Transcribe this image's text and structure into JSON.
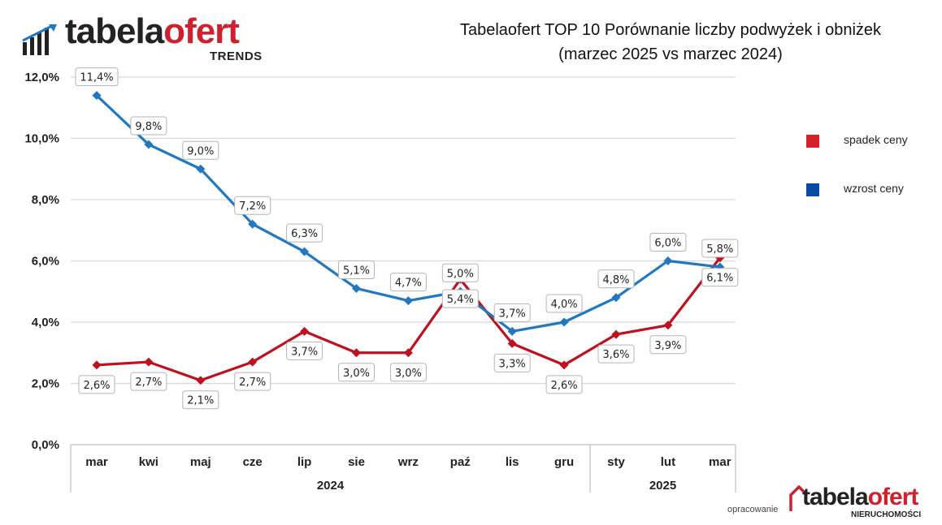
{
  "brand": {
    "logo_main": "tabela",
    "logo_accent": "ofert",
    "logo_sub": "TRENDS"
  },
  "credit": {
    "prefix": "opracowanie",
    "logo_main": "tabela",
    "logo_accent": "ofert",
    "logo_sub": "NIERUCHOMOŚCI"
  },
  "chart_data": {
    "type": "line",
    "title_line1": "Tabelaofert TOP 10 Porównanie liczby podwyżek i obniżek",
    "title_line2": "(marzec 2025 vs marzec 2024)",
    "categories": [
      "mar",
      "kwi",
      "maj",
      "cze",
      "lip",
      "sie",
      "wrz",
      "paź",
      "lis",
      "gru",
      "sty",
      "lut",
      "mar"
    ],
    "year_groups": [
      {
        "label": "2024",
        "count": 10
      },
      {
        "label": "2025",
        "count": 3
      }
    ],
    "yticks": [
      "0,0%",
      "2,0%",
      "4,0%",
      "6,0%",
      "8,0%",
      "10,0%",
      "12,0%"
    ],
    "ylim": [
      0,
      12
    ],
    "grid": true,
    "legend_position": "right",
    "series": [
      {
        "name": "spadek ceny",
        "color": "#c0101e",
        "legend_color": "#d3202a",
        "values": [
          2.6,
          2.7,
          2.1,
          2.7,
          3.7,
          3.0,
          3.0,
          5.4,
          3.3,
          2.6,
          3.6,
          3.9,
          6.1
        ],
        "labels": [
          "2,6%",
          "2,7%",
          "2,1%",
          "2,7%",
          "3,7%",
          "3,0%",
          "3,0%",
          "5,4%",
          "3,3%",
          "2,6%",
          "3,6%",
          "3,9%",
          "6,1%"
        ],
        "label_pos": [
          "below",
          "below",
          "below",
          "below",
          "below",
          "below",
          "below",
          "below",
          "below",
          "below",
          "below",
          "below",
          "below"
        ]
      },
      {
        "name": "wzrost ceny",
        "color": "#1f78c1",
        "legend_color": "#0b4aa2",
        "values": [
          11.4,
          9.8,
          9.0,
          7.2,
          6.3,
          5.1,
          4.7,
          5.0,
          3.7,
          4.0,
          4.8,
          6.0,
          5.8
        ],
        "labels": [
          "11,4%",
          "9,8%",
          "9,0%",
          "7,2%",
          "6,3%",
          "5,1%",
          "4,7%",
          "5,0%",
          "3,7%",
          "4,0%",
          "4,8%",
          "6,0%",
          "5,8%"
        ],
        "label_pos": [
          "above",
          "above",
          "above",
          "above",
          "above",
          "above",
          "above",
          "above",
          "above",
          "above",
          "above",
          "above",
          "above"
        ]
      }
    ]
  }
}
